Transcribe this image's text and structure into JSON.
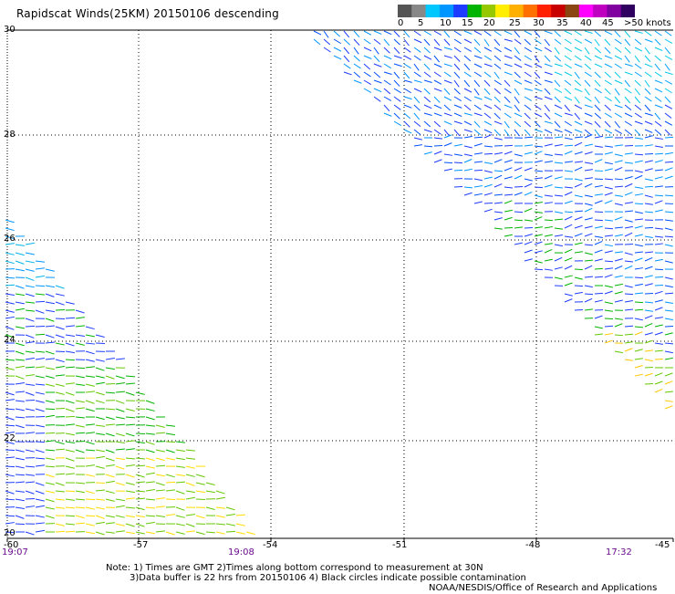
{
  "title": "Rapidscat Winds(25KM) 20150106 descending",
  "colorbar": {
    "labels": [
      "0",
      "5",
      "10",
      "15",
      "20",
      "25",
      "30",
      "35",
      "40",
      "45",
      ">50 knots"
    ],
    "colors": [
      "#555555",
      "#888888",
      "#00c8ff",
      "#0096ff",
      "#1e3cff",
      "#00b400",
      "#96c800",
      "#ffee00",
      "#ffb000",
      "#ff7000",
      "#ff2000",
      "#c80000",
      "#8b4513",
      "#ff00ff",
      "#c000c0",
      "#8000a0",
      "#300060"
    ]
  },
  "y_axis": {
    "labels": [
      "30",
      "28",
      "26",
      "24",
      "22",
      "20"
    ]
  },
  "x_axis": {
    "labels": [
      "-60",
      "-57",
      "-54",
      "-51",
      "-48",
      "-45"
    ]
  },
  "times": {
    "left": "19:07",
    "middle": "19:08",
    "right": "17:32"
  },
  "notes": {
    "line1": "Note: 1) Times are GMT 2)Times along bottom correspond to measurement at 30N",
    "line2": "3)Data buffer is 22 hrs from 20150106 4) Black circles indicate possible contamination",
    "credit": "NOAA/NESDIS/Office of Research and Applications"
  }
}
